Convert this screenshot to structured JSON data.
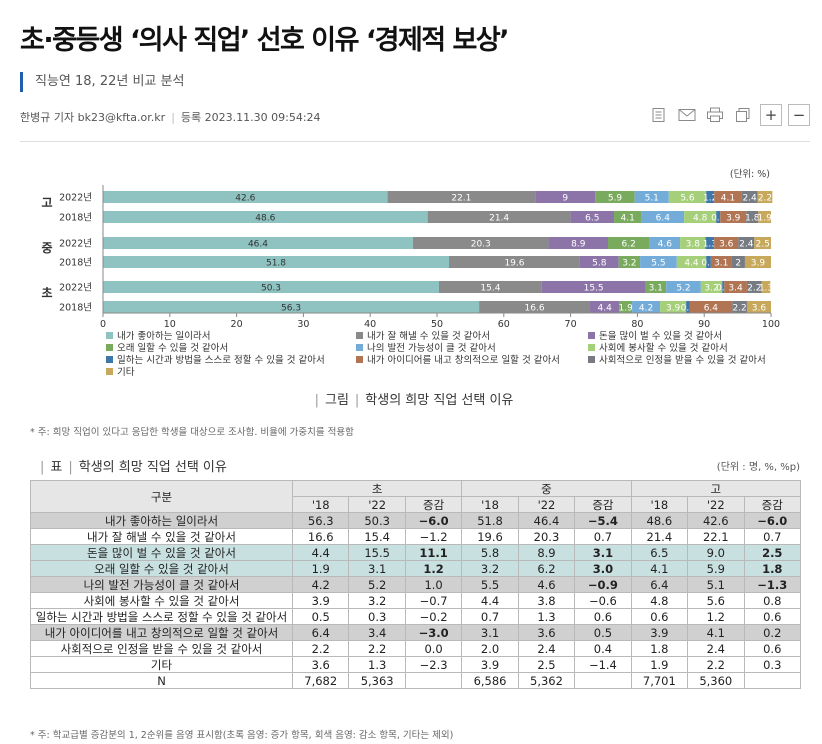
{
  "article": {
    "title": "초·중등생 ‘의사 직업’ 선호 이유 ‘경제적 보상’",
    "subtitle": "직능연 18, 22년 비교 분석",
    "reporter": "한병규 기자 bk23@kfta.or.kr",
    "registered": "등록 2023.11.30 09:54:24",
    "font_plus": "+",
    "font_minus": "−"
  },
  "colors": {
    "accent": "#1f5fae",
    "palette": [
      "#8fc3c1",
      "#8a8a8a",
      "#8c74a8",
      "#7aaa5e",
      "#74acd9",
      "#a6cf7a",
      "#3f77aa",
      "#b27554",
      "#777b82",
      "#c8a95c"
    ]
  },
  "chart_data": {
    "type": "bar",
    "orientation": "horizontal",
    "stacked": true,
    "unit_label": "(단위: %)",
    "xlim": [
      0,
      100
    ],
    "xticks": [
      0,
      10,
      20,
      30,
      40,
      50,
      60,
      70,
      80,
      90,
      100
    ],
    "groups": [
      "고",
      "중",
      "초"
    ],
    "years": [
      "2022년",
      "2018년"
    ],
    "categories_order": [
      "내가 좋아하는 일이라서",
      "내가 잘 해낼 수 있을 것 같아서",
      "돈을 많이 벌 수 있을 것 같아서",
      "오래 일할 수 있을 것 같아서",
      "나의 발전 가능성이 클 것 같아서",
      "사회에 봉사할 수 있을 것 같아서",
      "일하는 시간과 방법을 스스로 정할 수 있을 것 같아서",
      "내가 아이디어를 내고 창의적으로 일할 것 같아서",
      "사회적으로 인정을 받을 수 있을 것 같아서",
      "기타"
    ],
    "bars": [
      {
        "group": "고",
        "year": "2022년",
        "values": [
          42.6,
          22.1,
          9.0,
          5.9,
          5.1,
          5.6,
          1.2,
          4.1,
          2.4,
          2.2
        ],
        "labels": [
          "42.6",
          "22.1",
          "9",
          "5.9",
          "5.1",
          "5.6",
          "1.2",
          "4.1",
          "2.4",
          "2.2"
        ]
      },
      {
        "group": "고",
        "year": "2018년",
        "values": [
          48.6,
          21.4,
          6.5,
          4.1,
          6.4,
          4.8,
          0.6,
          3.9,
          1.8,
          1.9
        ],
        "labels": [
          "48.6",
          "21.4",
          "6.5",
          "4.1",
          "6.4",
          "4.8",
          "0.6",
          "3.9",
          "1.8",
          "1.9"
        ]
      },
      {
        "group": "중",
        "year": "2022년",
        "values": [
          46.4,
          20.3,
          8.9,
          6.2,
          4.6,
          3.8,
          1.3,
          3.6,
          2.4,
          2.5
        ],
        "labels": [
          "46.4",
          "20.3",
          "8.9",
          "6.2",
          "4.6",
          "3.8",
          "1.3",
          "3.6",
          "2.4",
          "2.5"
        ]
      },
      {
        "group": "중",
        "year": "2018년",
        "values": [
          51.8,
          19.6,
          5.8,
          3.2,
          5.5,
          4.4,
          0.7,
          3.1,
          2.0,
          3.9
        ],
        "labels": [
          "51.8",
          "19.6",
          "5.8",
          "3.2",
          "5.5",
          "4.4",
          "0.7",
          "3.1",
          "2",
          "3.9"
        ]
      },
      {
        "group": "초",
        "year": "2022년",
        "values": [
          50.3,
          15.4,
          15.5,
          3.1,
          5.2,
          3.2,
          0.3,
          3.4,
          2.2,
          1.3
        ],
        "labels": [
          "50.3",
          "15.4",
          "15.5",
          "3.1",
          "5.2",
          "3.2",
          "0.3",
          "3.4",
          "2.2",
          "1.3"
        ]
      },
      {
        "group": "초",
        "year": "2018년",
        "values": [
          56.3,
          16.6,
          4.4,
          1.9,
          4.2,
          3.9,
          0.5,
          6.4,
          2.2,
          3.6
        ],
        "labels": [
          "56.3",
          "16.6",
          "4.4",
          "1.9",
          "4.2",
          "3.9",
          "0.5",
          "6.4",
          "2.2",
          "3.6"
        ]
      }
    ],
    "legend": [
      "내가 좋아하는 일이라서",
      "내가 잘 해낼 수 있을 것 같아서",
      "돈을 많이 벌 수 있을 것 같아서",
      "오래 일할 수 있을 것 같아서",
      "나의 발전 가능성이 클 것 같아서",
      "사회에 봉사할 수 있을 것 같아서",
      "일하는 시간과 방법을 스스로 정할 수 있을 것 같아서",
      "내가 아이디어를 내고 창의적으로 일할 것 같아서",
      "사회적으로 인정을 받을 수 있을 것 같아서",
      "기타"
    ],
    "legend_placement": "bottom"
  },
  "figure": {
    "prefix": "그림",
    "caption": "학생의 희망 직업 선택 이유",
    "note": "* 주: 희망 직업이 있다고 응답한 학생을 대상으로 조사함. 비율에 가중치를 적용함"
  },
  "table": {
    "prefix": "표",
    "title": "학생의 희망 직업 선택 이유",
    "unit": "(단위 : 명, %, %p)",
    "header_label": "구분",
    "groups": [
      "초",
      "중",
      "고"
    ],
    "subcols": [
      "'18",
      "'22",
      "증감"
    ],
    "rows": [
      {
        "label": "내가 좋아하는 일이라서",
        "cells": [
          "56.3",
          "50.3",
          "−6.0",
          "51.8",
          "46.4",
          "−5.4",
          "48.6",
          "42.6",
          "−6.0"
        ],
        "style": "gray",
        "bold": [
          2,
          5,
          8
        ]
      },
      {
        "label": "내가 잘 해낼 수 있을 것 같아서",
        "cells": [
          "16.6",
          "15.4",
          "−1.2",
          "19.6",
          "20.3",
          "0.7",
          "21.4",
          "22.1",
          "0.7"
        ],
        "style": "",
        "bold": []
      },
      {
        "label": "돈을 많이 벌 수 있을 것 같아서",
        "cells": [
          "4.4",
          "15.5",
          "11.1",
          "5.8",
          "8.9",
          "3.1",
          "6.5",
          "9.0",
          "2.5"
        ],
        "style": "teal",
        "bold": [
          2,
          5,
          8
        ]
      },
      {
        "label": "오래 일할 수 있을 것 같아서",
        "cells": [
          "1.9",
          "3.1",
          "1.2",
          "3.2",
          "6.2",
          "3.0",
          "4.1",
          "5.9",
          "1.8"
        ],
        "style": "teal",
        "bold": [
          2,
          5,
          8
        ]
      },
      {
        "label": "나의 발전 가능성이 클 것 같아서",
        "cells": [
          "4.2",
          "5.2",
          "1.0",
          "5.5",
          "4.6",
          "−0.9",
          "6.4",
          "5.1",
          "−1.3"
        ],
        "style": "gray",
        "bold": [
          5,
          8
        ]
      },
      {
        "label": "사회에 봉사할 수 있을 것 같아서",
        "cells": [
          "3.9",
          "3.2",
          "−0.7",
          "4.4",
          "3.8",
          "−0.6",
          "4.8",
          "5.6",
          "0.8"
        ],
        "style": "",
        "bold": []
      },
      {
        "label": "일하는 시간과 방법을 스스로 정할 수 있을 것 같아서",
        "cells": [
          "0.5",
          "0.3",
          "−0.2",
          "0.7",
          "1.3",
          "0.6",
          "0.6",
          "1.2",
          "0.6"
        ],
        "style": "",
        "bold": []
      },
      {
        "label": "내가 아이디어를 내고 창의적으로 일할 것 같아서",
        "cells": [
          "6.4",
          "3.4",
          "−3.0",
          "3.1",
          "3.6",
          "0.5",
          "3.9",
          "4.1",
          "0.2"
        ],
        "style": "gray",
        "bold": [
          2
        ]
      },
      {
        "label": "사회적으로 인정을 받을 수 있을 것 같아서",
        "cells": [
          "2.2",
          "2.2",
          "0.0",
          "2.0",
          "2.4",
          "0.4",
          "1.8",
          "2.4",
          "0.6"
        ],
        "style": "",
        "bold": []
      },
      {
        "label": "기타",
        "cells": [
          "3.6",
          "1.3",
          "−2.3",
          "3.9",
          "2.5",
          "−1.4",
          "1.9",
          "2.2",
          "0.3"
        ],
        "style": "",
        "bold": []
      },
      {
        "label": "N",
        "cells": [
          "7,682",
          "5,363",
          "",
          "6,586",
          "5,362",
          "",
          "7,701",
          "5,360",
          ""
        ],
        "style": "",
        "bold": []
      }
    ],
    "note": "* 주: 학교급별 증감분의 1, 2순위를 음영 표시함(초록 음영: 증가 항목, 회색 음영: 감소 항목, 기타는 제외)"
  }
}
